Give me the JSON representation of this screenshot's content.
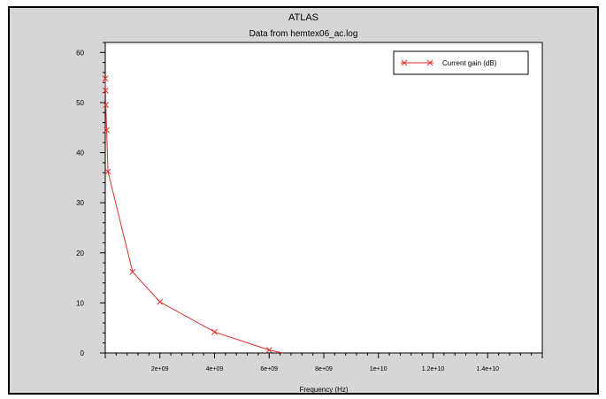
{
  "chart_data": {
    "type": "line",
    "title": "ATLAS",
    "subtitle": "Data from hemtex06_ac.log",
    "xlabel": "Frequency (Hz)",
    "ylabel": "",
    "xlim": [
      0,
      16000000000.0
    ],
    "ylim": [
      0,
      62
    ],
    "x_ticks": [
      2000000000.0,
      4000000000.0,
      6000000000.0,
      8000000000.0,
      10000000000.0,
      12000000000.0,
      14000000000.0
    ],
    "x_tick_labels": [
      "2e+09",
      "4e+09",
      "6e+09",
      "8e+09",
      "1e+10",
      "1.2e+10",
      "1.4e+10"
    ],
    "y_ticks": [
      0,
      10,
      20,
      30,
      40,
      50,
      60
    ],
    "y_tick_labels": [
      "0",
      "10",
      "20",
      "30",
      "40",
      "50",
      "60"
    ],
    "grid": false,
    "legend_position": "top-right",
    "series": [
      {
        "name": "Current gain (dB)",
        "color": "#e0302e",
        "marker": "x",
        "x": [
          1000000.0,
          10000000.0,
          20000000.0,
          50000000.0,
          100000000.0,
          1000000000.0,
          2000000000.0,
          4000000000.0,
          6000000000.0,
          6500000000.0
        ],
        "y": [
          54.8,
          52.4,
          49.5,
          44.5,
          36.2,
          16.2,
          10.2,
          4.2,
          0.6,
          0
        ]
      }
    ]
  }
}
